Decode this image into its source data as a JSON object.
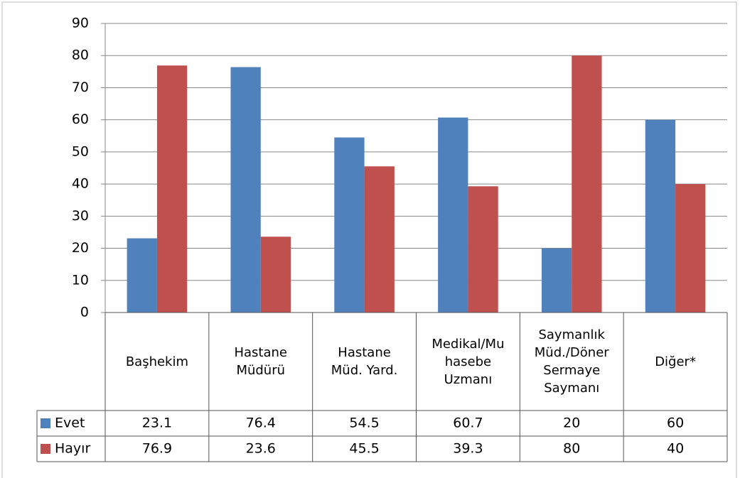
{
  "chart_data": {
    "type": "bar",
    "categories": [
      "Başhekim",
      "Hastane\nMüdürü",
      "Hastane\nMüd. Yard.",
      "Medikal/Mu\nhasebe\nUzmanı",
      "Saymanlık\nMüd./Döner\nSermaye\nSaymanı",
      "Diğer*"
    ],
    "series": [
      {
        "name": "Evet",
        "color": "#4f81bd",
        "values": [
          23.1,
          76.4,
          54.5,
          60.7,
          20,
          60
        ]
      },
      {
        "name": "Hayır",
        "color": "#c0504d",
        "values": [
          76.9,
          23.6,
          45.5,
          39.3,
          80,
          40
        ]
      }
    ],
    "ylim": [
      0,
      90
    ],
    "yticks": [
      0,
      10,
      20,
      30,
      40,
      50,
      60,
      70,
      80,
      90
    ],
    "grid": true
  }
}
